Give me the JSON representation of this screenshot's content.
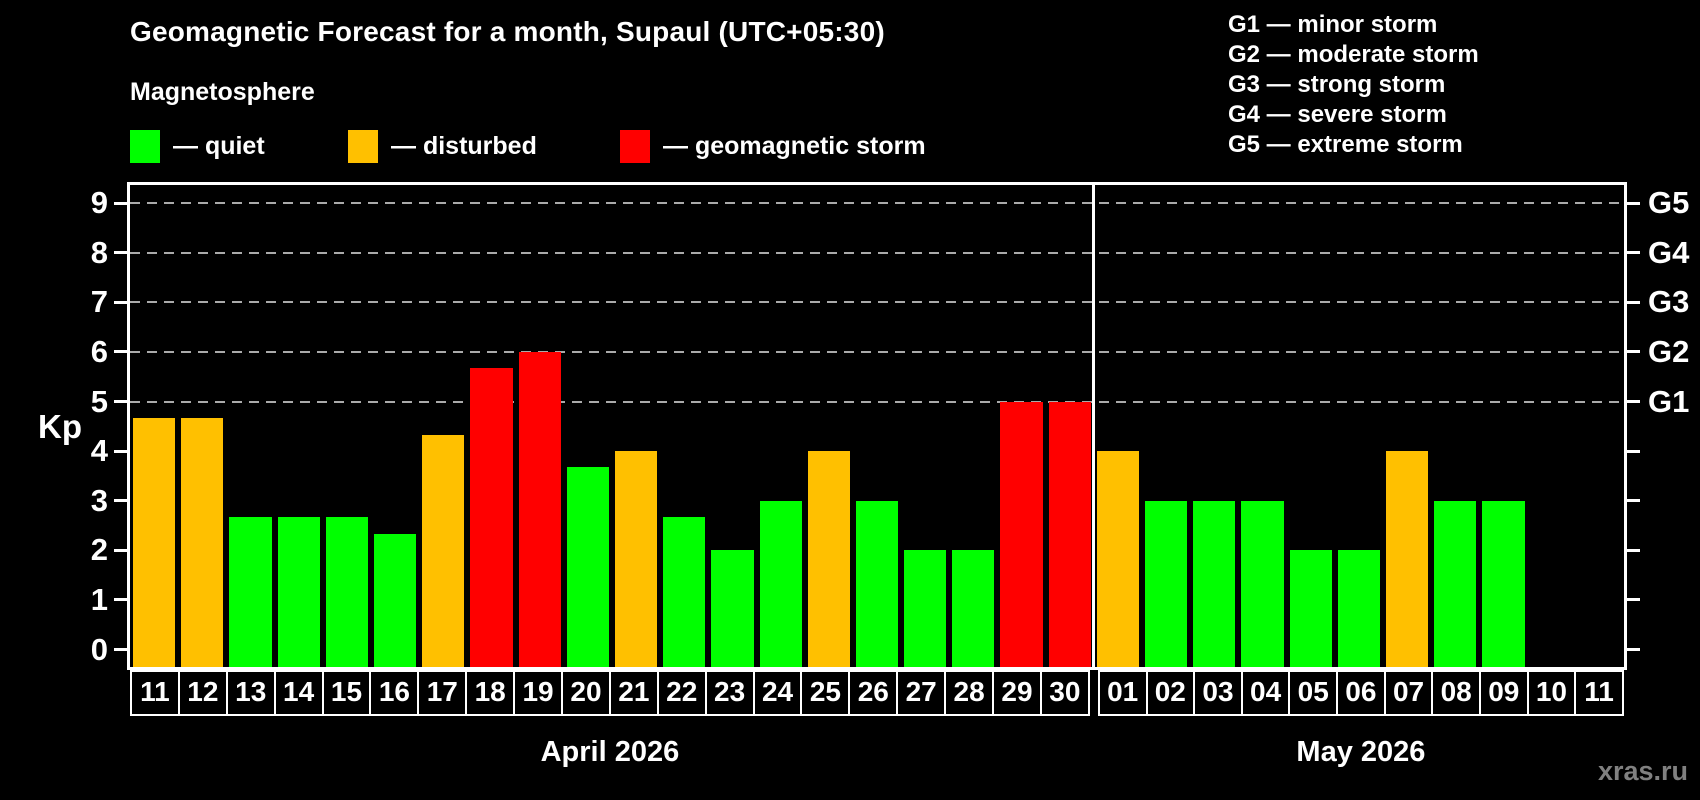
{
  "title": "Geomagnetic Forecast for a month, Supaul (UTC+05:30)",
  "subtitle": "Magnetosphere",
  "watermark": "xras.ru",
  "colors": {
    "quiet": "#00ff00",
    "disturbed": "#ffc000",
    "storm": "#ff0000",
    "background": "#000000",
    "text": "#ffffff",
    "grid": "#aaaaaa",
    "watermark_text": "#808080"
  },
  "legend": {
    "items": [
      {
        "key": "quiet",
        "label": "— quiet"
      },
      {
        "key": "disturbed",
        "label": "— disturbed"
      },
      {
        "key": "storm",
        "label": "— geomagnetic storm"
      }
    ]
  },
  "g_legend": {
    "items": [
      "G1 — minor storm",
      "G2 — moderate storm",
      "G3 — strong storm",
      "G4 — severe storm",
      "G5 — extreme storm"
    ]
  },
  "axis": {
    "y_label": "Kp",
    "y_ticks": [
      0,
      1,
      2,
      3,
      4,
      5,
      6,
      7,
      8,
      9
    ],
    "grid_kp": [
      5,
      6,
      7,
      8,
      9
    ],
    "g_labels": [
      {
        "label": "G1",
        "kp": 5
      },
      {
        "label": "G2",
        "kp": 6
      },
      {
        "label": "G3",
        "kp": 7
      },
      {
        "label": "G4",
        "kp": 8
      },
      {
        "label": "G5",
        "kp": 9
      }
    ]
  },
  "chart_data": {
    "type": "bar",
    "ylabel": "Kp",
    "ylim": [
      0,
      9.4
    ],
    "legend_position": "top-left",
    "grid": "dashed horizontal lines at Kp 5,6,7,8,9",
    "months": [
      {
        "name": "April 2026",
        "days": [
          {
            "day": "11",
            "kp": 4.67,
            "state": "disturbed"
          },
          {
            "day": "12",
            "kp": 4.67,
            "state": "disturbed"
          },
          {
            "day": "13",
            "kp": 2.67,
            "state": "quiet"
          },
          {
            "day": "14",
            "kp": 2.67,
            "state": "quiet"
          },
          {
            "day": "15",
            "kp": 2.67,
            "state": "quiet"
          },
          {
            "day": "16",
            "kp": 2.33,
            "state": "quiet"
          },
          {
            "day": "17",
            "kp": 4.33,
            "state": "disturbed"
          },
          {
            "day": "18",
            "kp": 5.67,
            "state": "storm"
          },
          {
            "day": "19",
            "kp": 6.0,
            "state": "storm"
          },
          {
            "day": "20",
            "kp": 3.67,
            "state": "quiet"
          },
          {
            "day": "21",
            "kp": 4.0,
            "state": "disturbed"
          },
          {
            "day": "22",
            "kp": 2.67,
            "state": "quiet"
          },
          {
            "day": "23",
            "kp": 2.0,
            "state": "quiet"
          },
          {
            "day": "24",
            "kp": 3.0,
            "state": "quiet"
          },
          {
            "day": "25",
            "kp": 4.0,
            "state": "disturbed"
          },
          {
            "day": "26",
            "kp": 3.0,
            "state": "quiet"
          },
          {
            "day": "27",
            "kp": 2.0,
            "state": "quiet"
          },
          {
            "day": "28",
            "kp": 2.0,
            "state": "quiet"
          },
          {
            "day": "29",
            "kp": 5.0,
            "state": "storm"
          },
          {
            "day": "30",
            "kp": 5.0,
            "state": "storm"
          }
        ]
      },
      {
        "name": "May 2026",
        "days": [
          {
            "day": "01",
            "kp": 4.0,
            "state": "disturbed"
          },
          {
            "day": "02",
            "kp": 3.0,
            "state": "quiet"
          },
          {
            "day": "03",
            "kp": 3.0,
            "state": "quiet"
          },
          {
            "day": "04",
            "kp": 3.0,
            "state": "quiet"
          },
          {
            "day": "05",
            "kp": 2.0,
            "state": "quiet"
          },
          {
            "day": "06",
            "kp": 2.0,
            "state": "quiet"
          },
          {
            "day": "07",
            "kp": 4.0,
            "state": "disturbed"
          },
          {
            "day": "08",
            "kp": 3.0,
            "state": "quiet"
          },
          {
            "day": "09",
            "kp": 3.0,
            "state": "quiet"
          },
          {
            "day": "10",
            "kp": null,
            "state": "none"
          },
          {
            "day": "11",
            "kp": null,
            "state": "none"
          }
        ]
      }
    ]
  }
}
